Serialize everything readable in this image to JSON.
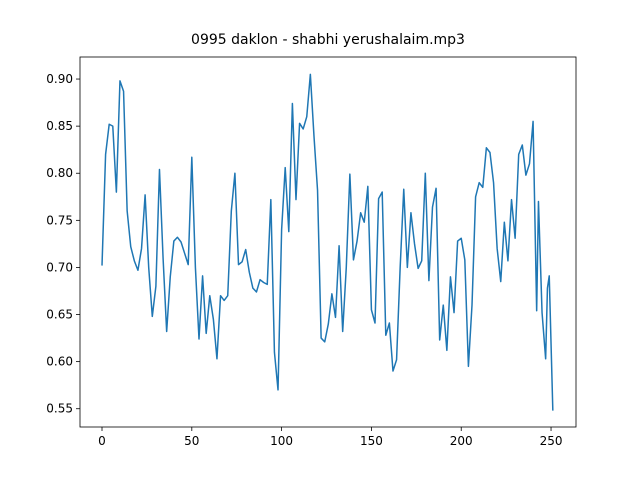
{
  "chart_data": {
    "type": "line",
    "title": "0995 daklon - shabhi yerushalaim.mp3",
    "x": [
      0,
      2,
      4,
      6,
      8,
      10,
      12,
      14,
      16,
      18,
      20,
      22,
      24,
      26,
      28,
      30,
      32,
      34,
      36,
      38,
      40,
      42,
      44,
      46,
      48,
      50,
      52,
      54,
      56,
      58,
      60,
      62,
      64,
      66,
      68,
      70,
      72,
      74,
      76,
      78,
      80,
      82,
      84,
      86,
      88,
      90,
      92,
      94,
      96,
      98,
      100,
      102,
      104,
      106,
      108,
      110,
      112,
      114,
      116,
      118,
      120,
      122,
      124,
      126,
      128,
      130,
      132,
      134,
      136,
      138,
      140,
      142,
      144,
      146,
      148,
      150,
      152,
      154,
      156,
      158,
      160,
      162,
      164,
      166,
      168,
      170,
      172,
      174,
      176,
      178,
      180,
      182,
      184,
      186,
      188,
      190,
      192,
      194,
      196,
      198,
      200,
      202,
      204,
      206,
      208,
      210,
      212,
      214,
      216,
      218,
      220,
      222,
      224,
      226,
      228,
      230,
      232,
      234,
      236,
      238,
      240,
      242,
      243,
      245,
      247,
      248,
      249,
      251
    ],
    "series": [
      {
        "color": "#1f77b4",
        "values": [
          0.702,
          0.82,
          0.852,
          0.85,
          0.78,
          0.898,
          0.887,
          0.76,
          0.722,
          0.707,
          0.697,
          0.72,
          0.777,
          0.7,
          0.648,
          0.68,
          0.804,
          0.71,
          0.632,
          0.69,
          0.728,
          0.732,
          0.727,
          0.715,
          0.703,
          0.817,
          0.7,
          0.624,
          0.691,
          0.63,
          0.67,
          0.645,
          0.603,
          0.67,
          0.665,
          0.67,
          0.76,
          0.8,
          0.703,
          0.706,
          0.719,
          0.695,
          0.678,
          0.674,
          0.687,
          0.684,
          0.682,
          0.772,
          0.61,
          0.57,
          0.74,
          0.806,
          0.738,
          0.874,
          0.772,
          0.853,
          0.847,
          0.86,
          0.905,
          0.84,
          0.782,
          0.625,
          0.621,
          0.64,
          0.672,
          0.647,
          0.723,
          0.632,
          0.7,
          0.799,
          0.708,
          0.728,
          0.758,
          0.748,
          0.786,
          0.655,
          0.641,
          0.773,
          0.78,
          0.628,
          0.641,
          0.59,
          0.602,
          0.7,
          0.783,
          0.7,
          0.758,
          0.725,
          0.699,
          0.707,
          0.8,
          0.686,
          0.764,
          0.784,
          0.623,
          0.66,
          0.612,
          0.69,
          0.652,
          0.728,
          0.731,
          0.708,
          0.595,
          0.66,
          0.775,
          0.79,
          0.785,
          0.827,
          0.822,
          0.79,
          0.72,
          0.685,
          0.748,
          0.707,
          0.772,
          0.731,
          0.82,
          0.83,
          0.798,
          0.81,
          0.855,
          0.654,
          0.77,
          0.652,
          0.603,
          0.678,
          0.691,
          0.548
        ]
      }
    ],
    "xlim": [
      -12.25,
      263.9
    ],
    "ylim": [
      0.5306,
      0.9234
    ],
    "xticks": [
      0,
      50,
      100,
      150,
      200,
      250
    ],
    "yticks": [
      0.55,
      {
        "value": 0.6,
        "label": "0.60"
      },
      0.65,
      {
        "value": 0.7,
        "label": "0.70"
      },
      0.75,
      {
        "value": 0.8,
        "label": "0.80"
      },
      0.85,
      {
        "value": 0.9,
        "label": "0.90"
      }
    ]
  }
}
